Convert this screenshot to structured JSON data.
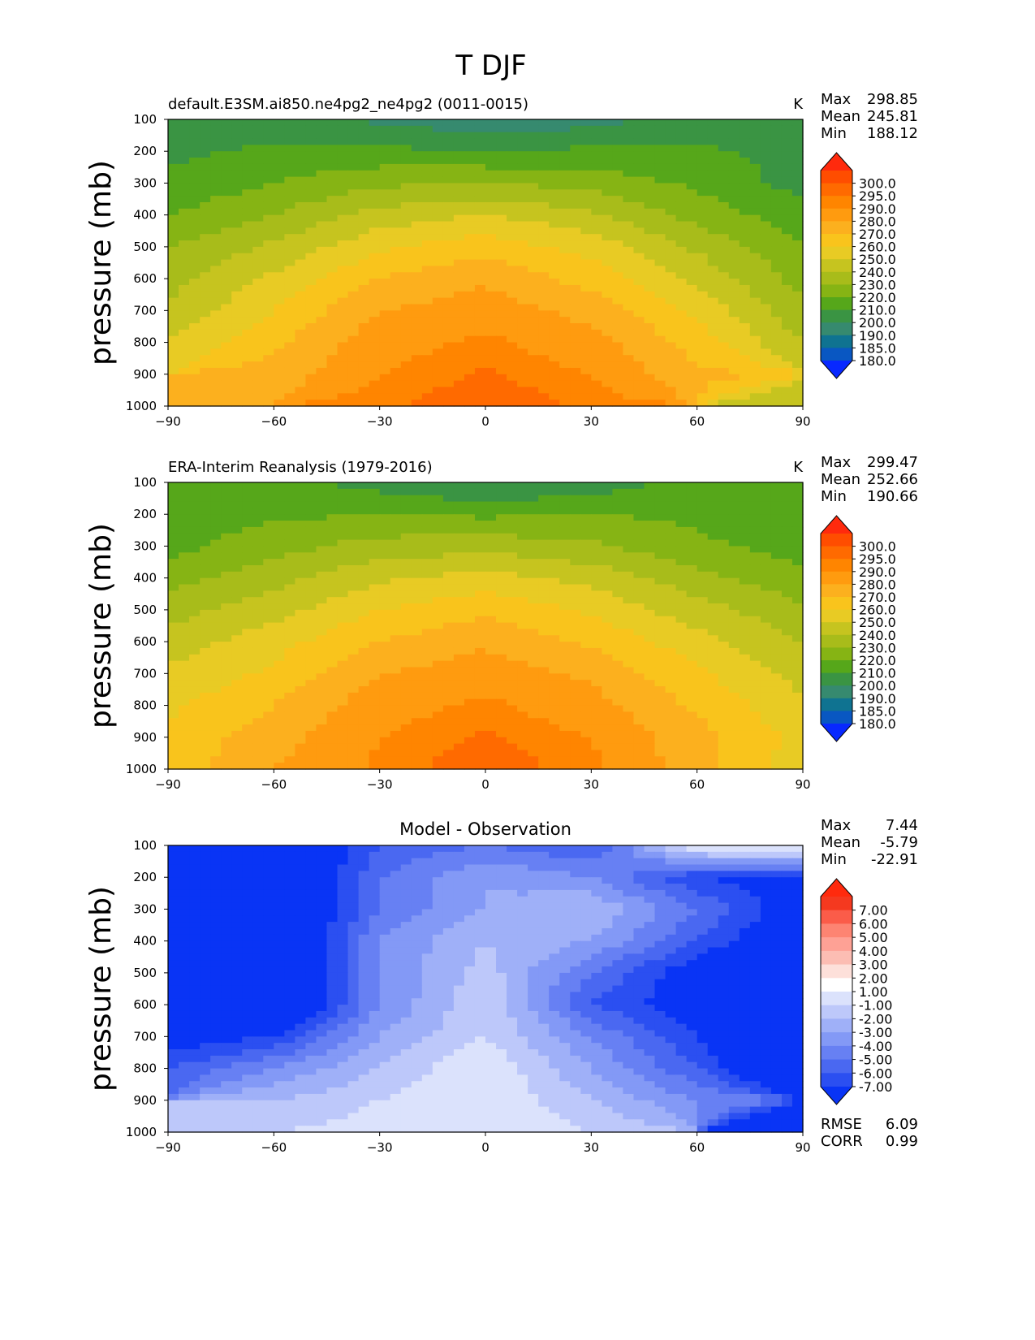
{
  "figure_title": "T DJF",
  "chart_data": [
    {
      "type": "heatmap",
      "title": "default.E3SM.ai850.ne4pg2_ne4pg2 (0011-0015)",
      "units": "K",
      "xlabel": "",
      "ylabel": "pressure (mb)",
      "xlim": [
        -90,
        90
      ],
      "ylim": [
        1000,
        100
      ],
      "x_ticks": [
        "−90",
        "−60",
        "−30",
        "0",
        "30",
        "60",
        "90"
      ],
      "y_ticks": [
        "100",
        "200",
        "300",
        "400",
        "500",
        "600",
        "700",
        "800",
        "900",
        "1000"
      ],
      "stats": {
        "max_label": "Max",
        "max": "298.85",
        "mean_label": "Mean",
        "mean": "245.81",
        "min_label": "Min",
        "min": "188.12"
      },
      "colorbar": {
        "levels": [
          "300.0",
          "295.0",
          "290.0",
          "280.0",
          "270.0",
          "260.0",
          "250.0",
          "240.0",
          "230.0",
          "220.0",
          "210.0",
          "200.0",
          "190.0",
          "185.0",
          "180.0"
        ],
        "colors": [
          "#ff2a0d",
          "#ff4d00",
          "#ff6a00",
          "#ff8500",
          "#ff9b0f",
          "#fcb01e",
          "#f9c41c",
          "#e8cb24",
          "#c6c41f",
          "#a8bc1a",
          "#86b414",
          "#56a71a",
          "#3a9443",
          "#368a6f",
          "#0f7391",
          "#0957c2",
          "#0828ff"
        ]
      },
      "x": [
        -90,
        -60,
        -30,
        0,
        30,
        60,
        90
      ],
      "pressure_levels": [
        100,
        200,
        300,
        400,
        500,
        600,
        700,
        800,
        900,
        1000
      ],
      "values": [
        [
          202,
          204,
          198,
          192,
          196,
          204,
          206
        ],
        [
          208,
          212,
          212,
          210,
          212,
          212,
          206
        ],
        [
          212,
          220,
          228,
          230,
          226,
          218,
          206
        ],
        [
          220,
          230,
          244,
          250,
          242,
          226,
          214
        ],
        [
          230,
          242,
          258,
          266,
          256,
          238,
          220
        ],
        [
          236,
          252,
          270,
          278,
          266,
          248,
          226
        ],
        [
          242,
          260,
          280,
          286,
          276,
          258,
          232
        ],
        [
          252,
          268,
          286,
          292,
          284,
          266,
          240
        ],
        [
          null,
          274,
          290,
          296,
          290,
          272,
          null
        ],
        [
          null,
          null,
          294,
          299,
          294,
          null,
          242
        ]
      ]
    },
    {
      "type": "heatmap",
      "title": "ERA-Interim Reanalysis (1979-2016)",
      "units": "K",
      "xlabel": "",
      "ylabel": "pressure (mb)",
      "xlim": [
        -90,
        90
      ],
      "ylim": [
        1000,
        100
      ],
      "x_ticks": [
        "−90",
        "−60",
        "−30",
        "0",
        "30",
        "60",
        "90"
      ],
      "y_ticks": [
        "100",
        "200",
        "300",
        "400",
        "500",
        "600",
        "700",
        "800",
        "900",
        "1000"
      ],
      "stats": {
        "max_label": "Max",
        "max": "299.47",
        "mean_label": "Mean",
        "mean": "252.66",
        "min_label": "Min",
        "min": "190.66"
      },
      "colorbar": {
        "levels": [
          "300.0",
          "295.0",
          "290.0",
          "280.0",
          "270.0",
          "260.0",
          "250.0",
          "240.0",
          "230.0",
          "220.0",
          "210.0",
          "200.0",
          "190.0",
          "185.0",
          "180.0"
        ],
        "colors": [
          "#ff2a0d",
          "#ff4d00",
          "#ff6a00",
          "#ff8500",
          "#ff9b0f",
          "#fcb01e",
          "#f9c41c",
          "#e8cb24",
          "#c6c41f",
          "#a8bc1a",
          "#86b414",
          "#56a71a",
          "#3a9443",
          "#368a6f",
          "#0f7391",
          "#0957c2",
          "#0828ff"
        ]
      },
      "x": [
        -90,
        -60,
        -30,
        0,
        30,
        60,
        90
      ],
      "pressure_levels": [
        100,
        200,
        300,
        400,
        500,
        600,
        700,
        800,
        900,
        1000
      ],
      "values": [
        [
          212,
          214,
          206,
          198,
          204,
          214,
          212
        ],
        [
          216,
          218,
          220,
          218,
          220,
          218,
          214
        ],
        [
          216,
          226,
          234,
          236,
          232,
          222,
          216
        ],
        [
          226,
          236,
          248,
          254,
          246,
          234,
          222
        ],
        [
          236,
          246,
          260,
          268,
          258,
          244,
          232
        ],
        [
          244,
          256,
          270,
          278,
          268,
          254,
          240
        ],
        [
          252,
          262,
          280,
          286,
          278,
          262,
          246
        ],
        [
          258,
          270,
          286,
          292,
          284,
          268,
          252
        ],
        [
          262,
          276,
          290,
          296,
          290,
          274,
          256
        ],
        [
          264,
          280,
          292,
          299,
          292,
          274,
          254
        ]
      ]
    },
    {
      "type": "heatmap",
      "title": "Model - Observation",
      "units": "",
      "xlabel": "",
      "ylabel": "pressure (mb)",
      "xlim": [
        -90,
        90
      ],
      "ylim": [
        1000,
        100
      ],
      "x_ticks": [
        "−90",
        "−60",
        "−30",
        "0",
        "30",
        "60",
        "90"
      ],
      "y_ticks": [
        "100",
        "200",
        "300",
        "400",
        "500",
        "600",
        "700",
        "800",
        "900",
        "1000"
      ],
      "stats": {
        "max_label": "Max",
        "max": "7.44",
        "mean_label": "Mean",
        "mean": "-5.79",
        "min_label": "Min",
        "min": "-22.91"
      },
      "extra_stats": {
        "rmse_label": "RMSE",
        "rmse": "6.09",
        "corr_label": "CORR",
        "corr": "0.99"
      },
      "colorbar": {
        "levels": [
          "7.00",
          "6.00",
          "5.00",
          "4.00",
          "3.00",
          "2.00",
          "1.00",
          "-1.00",
          "-2.00",
          "-3.00",
          "-4.00",
          "-5.00",
          "-6.00",
          "-7.00"
        ],
        "colors": [
          "#ff2a0d",
          "#f5391f",
          "#fb5c49",
          "#fd8472",
          "#fea195",
          "#fcbdb3",
          "#fde0da",
          "#ffffff",
          "#dbe2fc",
          "#bdc8fa",
          "#9fb0f8",
          "#8399f6",
          "#6780f3",
          "#4a68f1",
          "#2b4ff1",
          "#0934f5"
        ]
      },
      "x": [
        -90,
        -60,
        -30,
        0,
        30,
        60,
        90
      ],
      "pressure_levels": [
        100,
        200,
        300,
        400,
        500,
        600,
        700,
        800,
        900,
        1000
      ],
      "values": [
        [
          -10,
          -10,
          -6,
          -5,
          -6,
          0,
          2
        ],
        [
          -10,
          -10,
          -5,
          -3,
          -4,
          -7,
          -8
        ],
        [
          -10,
          -10,
          -5,
          -3,
          -2,
          -5,
          -8
        ],
        [
          -10,
          -10,
          -4,
          -2,
          -3,
          -6,
          -9
        ],
        [
          -10,
          -10,
          -4,
          -1.5,
          -5,
          -8,
          -10
        ],
        [
          -10,
          -10,
          -4,
          -1,
          -6,
          -8,
          -10
        ],
        [
          -8,
          -7,
          -3,
          -1,
          -4,
          -7,
          -10
        ],
        [
          -6,
          -4,
          -2,
          0,
          -3,
          -6,
          -10
        ],
        [
          null,
          -2,
          -1,
          0,
          -2,
          -4,
          null
        ],
        [
          null,
          null,
          -0.5,
          0,
          -1,
          null,
          -10
        ]
      ]
    }
  ]
}
